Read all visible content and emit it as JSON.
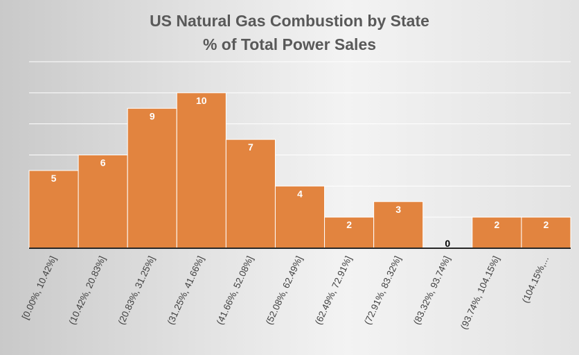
{
  "chart_data": {
    "type": "bar",
    "title_line1": "US Natural Gas Combustion by State",
    "title_line2": "% of Total Power Sales",
    "categories": [
      "[0.00%, 10.42%]",
      "(10.42%, 20.83%]",
      "(20.83%, 31.25%]",
      "(31.25%, 41.66%]",
      "(41.66%, 52.08%]",
      "(52.08%, 62.49%]",
      "(62.49%, 72.91%]",
      "(72.91%, 83.32%]",
      "(83.32%, 93.74%]",
      "(93.74%, 104.15%]",
      "(104.15%,..."
    ],
    "values": [
      5,
      6,
      9,
      10,
      7,
      4,
      2,
      3,
      0,
      2,
      2
    ],
    "data_labels": [
      "5",
      "6",
      "9",
      "10",
      "7",
      "4",
      "2",
      "3",
      "0",
      "2",
      "2"
    ],
    "xlabel": "",
    "ylabel": "",
    "ylim": [
      0,
      12
    ],
    "gridline_step": 2,
    "grid": true,
    "legend": "none",
    "bar_color": "#e2843f",
    "bar_label_color": "#ffffff",
    "zero_label_color": "#000000",
    "axis_color": "#262626",
    "grid_color": "#ffffff"
  }
}
